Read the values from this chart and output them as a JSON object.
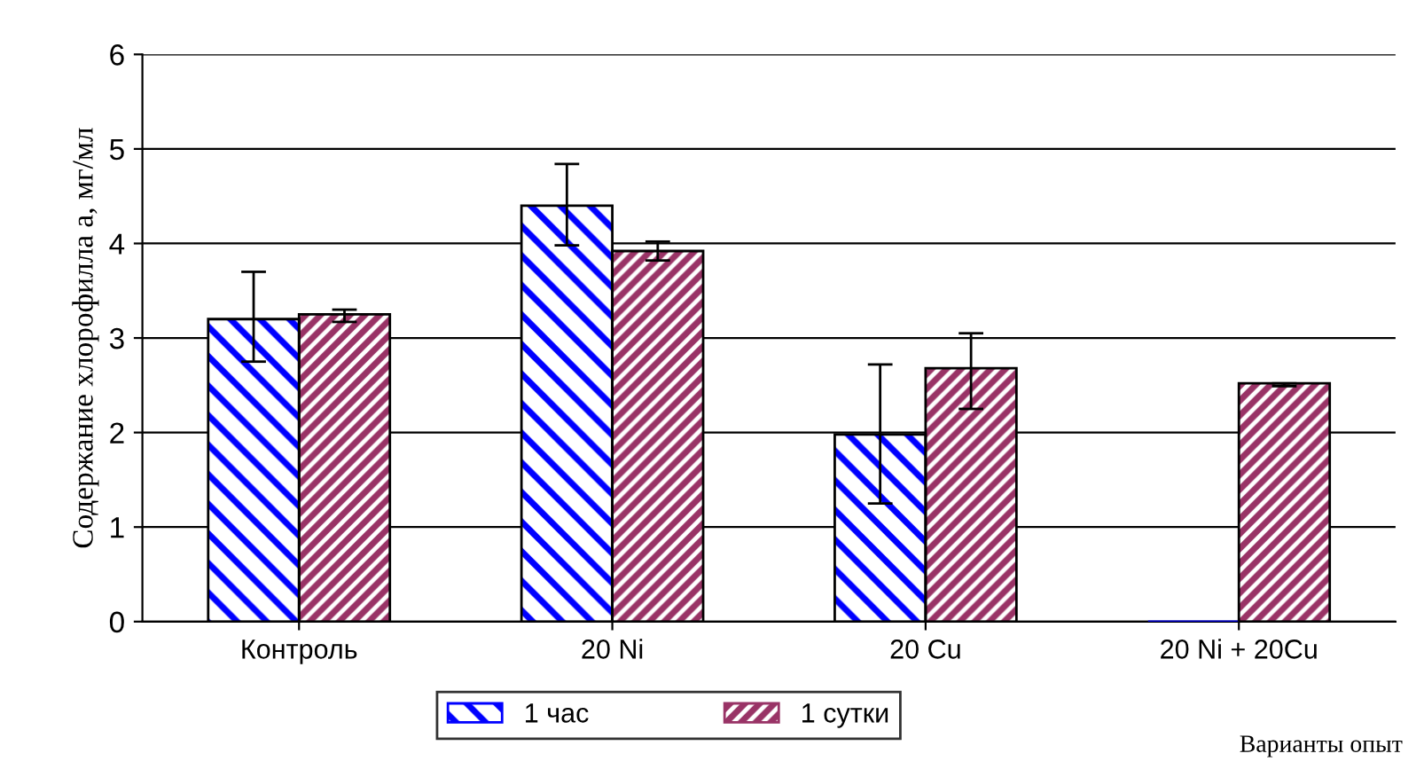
{
  "chart_data": {
    "type": "bar",
    "ylabel": "Содержание хлорофилла a, мг/мл",
    "xlabel": "Варианты опыт",
    "categories": [
      "Контроль",
      "20 Ni",
      "20 Cu",
      "20 Ni + 20Cu"
    ],
    "series": [
      {
        "name": "1 час",
        "color": "#0000ff",
        "values": [
          3.2,
          4.4,
          1.98,
          0
        ],
        "errors": [
          [
            2.75,
            3.7
          ],
          [
            3.98,
            4.84
          ],
          [
            1.25,
            2.72
          ],
          null
        ]
      },
      {
        "name": "1 сутки",
        "color": "#993366",
        "values": [
          3.25,
          3.92,
          2.68,
          2.52
        ],
        "errors": [
          [
            3.17,
            3.3
          ],
          [
            3.82,
            4.02
          ],
          [
            2.25,
            3.05
          ],
          [
            2.49,
            2.52
          ]
        ]
      }
    ],
    "ylim": [
      0,
      6
    ],
    "yticks": [
      0,
      1,
      2,
      3,
      4,
      5,
      6
    ],
    "grid": "y",
    "legend": "bottom"
  }
}
